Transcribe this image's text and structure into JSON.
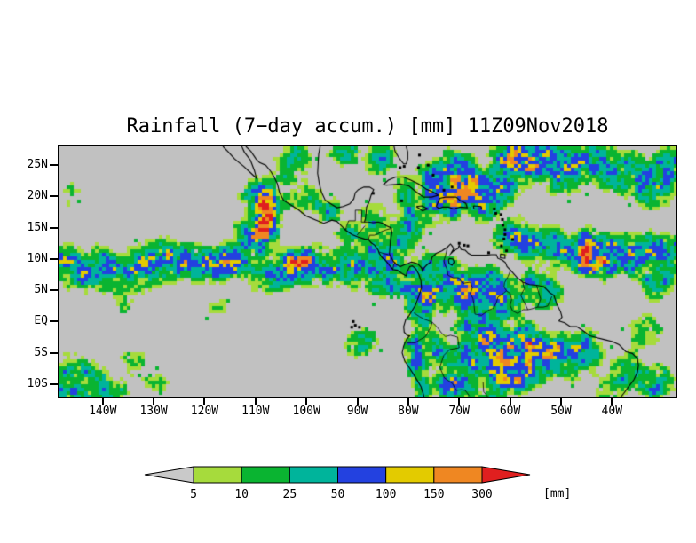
{
  "title": "Rainfall (7−day accum.) [mm] 11Z09Nov2018",
  "map": {
    "background": "#c1c1c1",
    "frame_color": "#000000",
    "coast_color": "#000000"
  },
  "axes": {
    "lon_range": [
      -148.5,
      -27.5
    ],
    "lat_range": [
      -12,
      28
    ],
    "lat_ticks": [
      {
        "label": "25N",
        "lat": 25
      },
      {
        "label": "20N",
        "lat": 20
      },
      {
        "label": "15N",
        "lat": 15
      },
      {
        "label": "10N",
        "lat": 10
      },
      {
        "label": "5N",
        "lat": 5
      },
      {
        "label": "EQ",
        "lat": 0
      },
      {
        "label": "5S",
        "lat": -5
      },
      {
        "label": "10S",
        "lat": -10
      }
    ],
    "lon_ticks": [
      {
        "label": "140W",
        "lon": -140
      },
      {
        "label": "130W",
        "lon": -130
      },
      {
        "label": "120W",
        "lon": -120
      },
      {
        "label": "110W",
        "lon": -110
      },
      {
        "label": "100W",
        "lon": -100
      },
      {
        "label": "90W",
        "lon": -90
      },
      {
        "label": "80W",
        "lon": -80
      },
      {
        "label": "70W",
        "lon": -70
      },
      {
        "label": "60W",
        "lon": -60
      },
      {
        "label": "50W",
        "lon": -50
      },
      {
        "label": "40W",
        "lon": -40
      }
    ]
  },
  "legend": {
    "units_label": "[mm]",
    "thresholds": [
      5,
      10,
      25,
      50,
      100,
      150,
      300
    ],
    "colors": {
      "below": "#c9c9c9",
      "bands": [
        "#a6db3c",
        "#0ab431",
        "#00b49b",
        "#2341e0",
        "#e3cb00",
        "#ef8722",
        "#e01f1f"
      ]
    }
  },
  "chart_data": {
    "type": "heatmap",
    "units": "mm",
    "field": "7-day accumulated rainfall",
    "rain_cells_columns": [
      "lon",
      "lat",
      "radius_lon_deg",
      "radius_lat_deg",
      "peak_mm"
    ],
    "rain_cells": [
      [
        -147.5,
        9.5,
        2.5,
        2,
        70
      ],
      [
        -144,
        7.5,
        3,
        2,
        45
      ],
      [
        -140,
        8.5,
        3.5,
        2.2,
        55
      ],
      [
        -136,
        8,
        3,
        2,
        35
      ],
      [
        -132,
        9,
        3,
        2.2,
        60
      ],
      [
        -128,
        9.5,
        3,
        2.2,
        90
      ],
      [
        -124.5,
        9.8,
        2.2,
        1.8,
        170
      ],
      [
        -120.5,
        9,
        3,
        2,
        55
      ],
      [
        -116.5,
        9.5,
        3,
        2,
        60
      ],
      [
        -113,
        10,
        2.5,
        2,
        45
      ],
      [
        -108.2,
        16.5,
        1.6,
        3,
        420
      ],
      [
        -110.5,
        13.5,
        2.5,
        2,
        70
      ],
      [
        -106.5,
        18.5,
        2,
        2,
        80
      ],
      [
        -110.3,
        19.8,
        2,
        1.8,
        50
      ],
      [
        -103.5,
        22.5,
        3,
        2.2,
        14
      ],
      [
        -99.5,
        19.5,
        2.5,
        2,
        20
      ],
      [
        -102,
        26.5,
        3,
        1.8,
        25
      ],
      [
        -95.5,
        17.5,
        2,
        1.5,
        30
      ],
      [
        -108,
        7.5,
        3,
        2.2,
        35
      ],
      [
        -104,
        8.5,
        3,
        2.2,
        55
      ],
      [
        -101.5,
        9.2,
        2.2,
        1.8,
        170
      ],
      [
        -97.5,
        9,
        2.5,
        2,
        60
      ],
      [
        -94,
        8.5,
        2.5,
        2,
        45
      ],
      [
        -90.5,
        8.5,
        2.5,
        2,
        50
      ],
      [
        -87,
        7.5,
        2.5,
        2,
        40
      ],
      [
        -91,
        13.5,
        2.5,
        1.8,
        35
      ],
      [
        -86.5,
        11.5,
        2,
        1.8,
        45
      ],
      [
        -84,
        9.5,
        2,
        1.8,
        55
      ],
      [
        -84.5,
        6,
        2.2,
        2,
        55
      ],
      [
        -79.5,
        6,
        2,
        2,
        70
      ],
      [
        -81.5,
        13,
        2.5,
        2,
        30
      ],
      [
        -78.5,
        16.5,
        2.5,
        2.2,
        45
      ],
      [
        -72.5,
        20,
        3,
        2.5,
        140
      ],
      [
        -68.5,
        21.5,
        2.8,
        2.5,
        130
      ],
      [
        -65,
        19.5,
        2.5,
        2.2,
        90
      ],
      [
        -70.5,
        24.5,
        2.5,
        2,
        70
      ],
      [
        -75.5,
        23,
        2.2,
        1.8,
        45
      ],
      [
        -62,
        22,
        2.5,
        2.2,
        80
      ],
      [
        -59,
        25.5,
        3,
        2.5,
        160
      ],
      [
        -54,
        26,
        3,
        2.2,
        90
      ],
      [
        -50,
        24,
        3,
        2.5,
        70
      ],
      [
        -44.5,
        25.5,
        3.5,
        2.5,
        60
      ],
      [
        -38,
        24,
        3,
        2.5,
        55
      ],
      [
        -32,
        22,
        3,
        2.5,
        65
      ],
      [
        -29,
        25,
        2.5,
        2,
        45
      ],
      [
        -29.5,
        11,
        2.5,
        2.5,
        60
      ],
      [
        -33.5,
        10.5,
        2.5,
        2.2,
        75
      ],
      [
        -37.5,
        10.5,
        2.5,
        2.2,
        90
      ],
      [
        -41.5,
        10.5,
        2.5,
        2.2,
        180
      ],
      [
        -44.5,
        11,
        2.2,
        2.2,
        230
      ],
      [
        -48,
        11.5,
        2.5,
        2,
        80
      ],
      [
        -52,
        12,
        2.5,
        2.2,
        55
      ],
      [
        -56,
        12.5,
        2.5,
        2,
        45
      ],
      [
        -59.5,
        13.5,
        2.5,
        2.2,
        55
      ],
      [
        -31,
        6.5,
        2.5,
        2.2,
        35
      ],
      [
        -75.5,
        4.5,
        2.2,
        2.2,
        120
      ],
      [
        -73,
        7.5,
        2.2,
        2,
        60
      ],
      [
        -70,
        5.5,
        2.5,
        2.2,
        75
      ],
      [
        -67,
        3.5,
        2.5,
        2.2,
        90
      ],
      [
        -64,
        6,
        2.5,
        2.2,
        60
      ],
      [
        -61.5,
        3,
        2.5,
        2.2,
        75
      ],
      [
        -77.5,
        1.5,
        1.8,
        2,
        70
      ],
      [
        -76.8,
        9,
        1.8,
        1.8,
        45
      ],
      [
        -56.5,
        6,
        2.2,
        1.8,
        45
      ],
      [
        -53,
        4.5,
        2.2,
        1.8,
        55
      ],
      [
        -66.5,
        -1.5,
        2.8,
        2.2,
        70
      ],
      [
        -63,
        -3.5,
        2.8,
        2.2,
        100
      ],
      [
        -59.5,
        -5,
        2.8,
        2.2,
        150
      ],
      [
        -56,
        -3.5,
        2.5,
        2.2,
        110
      ],
      [
        -53.5,
        -6,
        2.5,
        2.2,
        90
      ],
      [
        -50.5,
        -4,
        2.5,
        2.2,
        70
      ],
      [
        -47.5,
        -6,
        2.5,
        2.2,
        55
      ],
      [
        -44.5,
        -4,
        2.5,
        2,
        40
      ],
      [
        -57.5,
        -8.5,
        2.5,
        2,
        70
      ],
      [
        -62.5,
        -8,
        2.5,
        2,
        55
      ],
      [
        -68,
        -6,
        2.5,
        2.2,
        55
      ],
      [
        -71.5,
        -8.5,
        2.5,
        2.2,
        60
      ],
      [
        -74.5,
        -4.5,
        2.2,
        2,
        45
      ],
      [
        -70.5,
        -11,
        2.5,
        1.8,
        50
      ],
      [
        -79,
        -3.5,
        1.4,
        2.2,
        55
      ],
      [
        -78.2,
        -7,
        1.3,
        2.2,
        60
      ],
      [
        -77,
        -10.5,
        1.3,
        2,
        45
      ],
      [
        -146.5,
        -7.5,
        2.5,
        2.2,
        35
      ],
      [
        -142.5,
        -9.5,
        2.5,
        2.2,
        45
      ],
      [
        -147,
        -11.5,
        2.5,
        1.8,
        55
      ],
      [
        -138.5,
        -11.5,
        2.5,
        1.8,
        30
      ],
      [
        -134,
        -6.5,
        2.2,
        1.8,
        15
      ],
      [
        -129.5,
        -9.5,
        2.2,
        1.8,
        12
      ],
      [
        -118,
        2.5,
        2.5,
        2,
        10
      ],
      [
        -135,
        3.5,
        2.5,
        2,
        12
      ],
      [
        -146,
        20,
        2,
        1.8,
        10
      ],
      [
        -87,
        16.5,
        2,
        1.8,
        35
      ],
      [
        -92.5,
        27,
        2.5,
        1.5,
        30
      ],
      [
        -85.5,
        26,
        2.2,
        1.8,
        40
      ],
      [
        -80.5,
        21,
        2,
        1.8,
        35
      ],
      [
        -63.5,
        -11,
        2.5,
        1.8,
        45
      ],
      [
        -60,
        -9.5,
        2.5,
        1.8,
        55
      ],
      [
        -89,
        -3.5,
        2.2,
        2,
        30
      ],
      [
        -36,
        -8,
        2.5,
        2,
        50
      ],
      [
        -31,
        -10,
        2.5,
        2,
        55
      ],
      [
        -40,
        -10.5,
        2.5,
        2,
        40
      ],
      [
        -33.5,
        -1.5,
        2.5,
        2,
        30
      ]
    ]
  }
}
